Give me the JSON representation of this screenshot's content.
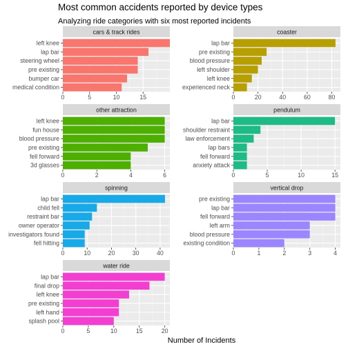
{
  "title": "Most common accidents reported by device types",
  "subtitle": "Analyzing ride categories with six most reported incidents",
  "xlabel": "Number of Incidents",
  "chart_data": [
    {
      "type": "bar",
      "orientation": "horizontal",
      "facet": "cars & track rides",
      "color": "#F8766D",
      "categories": [
        "left knee",
        "lap bar",
        "steering wheel",
        "pre existing",
        "bumper car",
        "medical condition"
      ],
      "values": [
        20,
        16,
        14,
        14,
        12,
        11
      ],
      "xlim": [
        0,
        20
      ],
      "xticks": [
        0,
        5,
        10,
        15
      ]
    },
    {
      "type": "bar",
      "orientation": "horizontal",
      "facet": "coaster",
      "color": "#B79F00",
      "categories": [
        "lap bar",
        "pre existing",
        "blood pressure",
        "left shoulder",
        "left knee",
        "experienced neck"
      ],
      "values": [
        83,
        27,
        23,
        20,
        15,
        11
      ],
      "xlim": [
        0,
        87
      ],
      "xticks": [
        0,
        20,
        40,
        60,
        80
      ]
    },
    {
      "type": "bar",
      "orientation": "horizontal",
      "facet": "other attraction",
      "color": "#4DAF00",
      "categories": [
        "left knee",
        "fun house",
        "blood pressure",
        "pre existing",
        "fell forward",
        "3d glasses"
      ],
      "values": [
        6,
        6,
        6,
        5,
        4,
        4
      ],
      "xlim": [
        0,
        6.3
      ],
      "xticks": [
        0,
        2,
        4,
        6
      ]
    },
    {
      "type": "bar",
      "orientation": "horizontal",
      "facet": "pendulum",
      "color": "#1FBB87",
      "categories": [
        "lap bar",
        "shoulder restraint",
        "law enforcement",
        "lap bars",
        "fell forward",
        "anxiety attack"
      ],
      "values": [
        15,
        4,
        3,
        2,
        2,
        2
      ],
      "xlim": [
        0,
        15.8
      ],
      "xticks": [
        0,
        5,
        10,
        15
      ]
    },
    {
      "type": "bar",
      "orientation": "horizontal",
      "facet": "spinning",
      "color": "#17A9E8",
      "categories": [
        "lap bar",
        "child fell",
        "restraint bar",
        "owner operator",
        "investigators found",
        "fell hitting"
      ],
      "values": [
        42,
        14,
        12,
        11,
        9,
        9
      ],
      "xlim": [
        0,
        44
      ],
      "xticks": [
        0,
        10,
        20,
        30,
        40
      ]
    },
    {
      "type": "bar",
      "orientation": "horizontal",
      "facet": "vertical drop",
      "color": "#9C86FF",
      "categories": [
        "pre existing",
        "lap bar",
        "fell forward",
        "left arm",
        "blood pressure",
        "existing condition"
      ],
      "values": [
        4,
        4,
        4,
        3,
        3,
        2
      ],
      "xlim": [
        0,
        4.2
      ],
      "xticks": [
        0,
        1,
        2,
        3,
        4
      ]
    },
    {
      "type": "bar",
      "orientation": "horizontal",
      "facet": "water ride",
      "color": "#F33FD1",
      "categories": [
        "lap bar",
        "final drop",
        "left knee",
        "pre existing",
        "left hand",
        "splash pool"
      ],
      "values": [
        20,
        17,
        13,
        11,
        11,
        10
      ],
      "xlim": [
        0,
        21
      ],
      "xticks": [
        0,
        5,
        10,
        15,
        20
      ]
    }
  ]
}
